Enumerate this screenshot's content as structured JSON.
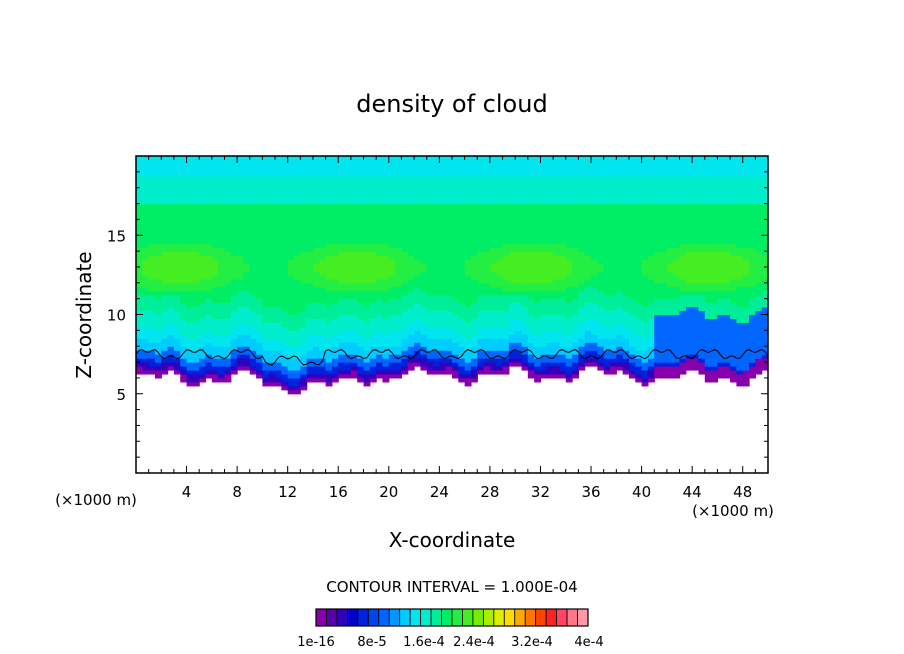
{
  "chart_data": {
    "type": "heatmap",
    "title": "density of cloud",
    "xlabel": "X-coordinate",
    "ylabel": "Z-coordinate",
    "x_unit": "(×1000 m)",
    "x_unit_right": "(×1000 m)",
    "xlim": [
      0,
      50
    ],
    "ylim": [
      0,
      20
    ],
    "x_ticks": [
      4,
      8,
      12,
      16,
      20,
      24,
      28,
      32,
      36,
      40,
      44,
      48
    ],
    "y_ticks": [
      5,
      10,
      15
    ],
    "grid": false,
    "contour_interval_text": "CONTOUR INTERVAL = 1.000E-04",
    "colorbar": {
      "min": 1e-16,
      "max": 0.0004,
      "tick_labels": [
        "1e-16",
        "8e-5",
        "1.6e-4",
        "2.4e-4",
        "3.2e-4",
        "4e-4"
      ],
      "colors": [
        "#8800aa",
        "#5500aa",
        "#3300bb",
        "#0000cc",
        "#0022dd",
        "#0044ee",
        "#0066ff",
        "#0099ff",
        "#00ccff",
        "#00e5ee",
        "#00eecc",
        "#00ee99",
        "#00ee66",
        "#22ee44",
        "#44ee22",
        "#77ee00",
        "#aaee00",
        "#ddee00",
        "#ffdd00",
        "#ffaa00",
        "#ff7700",
        "#ff4400",
        "#ff2222",
        "#ff4466",
        "#ff7788",
        "#ff99aa"
      ]
    },
    "cloud_field": {
      "cloud_base_km": 6.0,
      "cloud_top_km": 20.0,
      "core_z_km": [
        11,
        15
      ],
      "core_level_index": 14,
      "contour_line_z_km": 7.5
    }
  }
}
